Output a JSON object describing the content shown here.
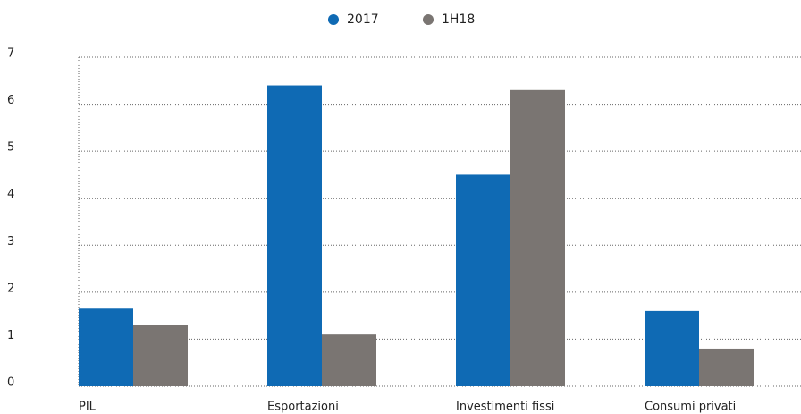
{
  "chart_data": {
    "type": "bar",
    "categories": [
      "PIL",
      "Esportazioni",
      "Investimenti fissi",
      "Consumi privati"
    ],
    "series": [
      {
        "name": "2017",
        "color": "#0f6ab4",
        "values": [
          1.65,
          6.4,
          4.5,
          1.6
        ]
      },
      {
        "name": "1H18",
        "color": "#7a7572",
        "values": [
          1.3,
          1.1,
          6.3,
          0.8
        ]
      }
    ],
    "ylim": [
      0,
      7
    ],
    "yticks": [
      0,
      1,
      2,
      3,
      4,
      5,
      6,
      7
    ],
    "grid": true,
    "legend": "top"
  }
}
